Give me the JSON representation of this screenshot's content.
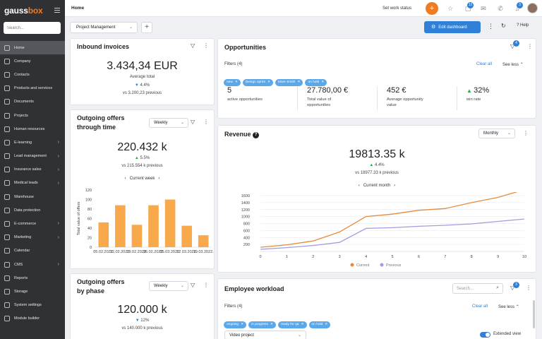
{
  "sidebar": {
    "logo_main": "gauss",
    "logo_accent": "box",
    "search_placeholder": "Search...",
    "items": [
      {
        "label": "Home",
        "active": true,
        "chevron": false
      },
      {
        "label": "Company",
        "chevron": false
      },
      {
        "label": "Contacts",
        "chevron": false
      },
      {
        "label": "Products and services",
        "chevron": false
      },
      {
        "label": "Documents",
        "chevron": false
      },
      {
        "label": "Projects",
        "chevron": false
      },
      {
        "label": "Human resources",
        "chevron": false
      },
      {
        "label": "E-learning",
        "chevron": true
      },
      {
        "label": "Lead management",
        "chevron": true
      },
      {
        "label": "Insurance sales",
        "chevron": true
      },
      {
        "label": "Medical leads",
        "chevron": true
      },
      {
        "label": "Warehouse",
        "chevron": false
      },
      {
        "label": "Data protection",
        "chevron": false
      },
      {
        "label": "E-commerce",
        "chevron": true
      },
      {
        "label": "Marketing",
        "chevron": true
      },
      {
        "label": "Calendar",
        "chevron": false
      },
      {
        "label": "CMS",
        "chevron": true
      },
      {
        "label": "Reports",
        "chevron": false
      },
      {
        "label": "Storage",
        "chevron": false
      },
      {
        "label": "System settings",
        "chevron": false
      },
      {
        "label": "Module builder",
        "chevron": false
      }
    ]
  },
  "topbar": {
    "title": "Home",
    "set_status": "Set work status",
    "plus": "+",
    "messages_badge": "12",
    "notifications_badge": "3"
  },
  "toolbar": {
    "dashboard_select": "Project Management",
    "add_tab": "+",
    "edit_dashboard": "Edit dashboard",
    "help": "Help"
  },
  "inbound": {
    "title": "Inbound invoices",
    "value": "3.434,34 EUR",
    "label": "Average total",
    "pct": "4.4%",
    "previous": "vs 3.200,23 previous"
  },
  "outgoing_time": {
    "title_line1": "Outgoing offers",
    "title_line2": "through time",
    "period": "Weekly",
    "value": "220.432 k",
    "pct": "5.5%",
    "previous": "vs 215.554 k previous",
    "nav_label": "Current week"
  },
  "outgoing_phase": {
    "title_line1": "Outgoing offers",
    "title_line2": "by phase",
    "period": "Weekly",
    "value": "120.000 k",
    "pct": "12%",
    "previous": "vs 140.000 k previous"
  },
  "opportunities": {
    "title": "Opportunities",
    "badge": "4",
    "filters_label": "Filters (4)",
    "clear_all": "Clear all",
    "see_less": "See less",
    "chips": [
      "new",
      "Design sprint",
      "More Smith",
      "on hold"
    ],
    "stats": [
      {
        "value": "5",
        "label1": "active opportunities",
        "label2": ""
      },
      {
        "value": "27.780,00 €",
        "label1": "Total value of",
        "label2": "opportunities"
      },
      {
        "value": "452 €",
        "label1": "Average opportunity",
        "label2": "value"
      },
      {
        "value": "32%",
        "label1": "win rate",
        "label2": ""
      }
    ]
  },
  "revenue": {
    "title": "Revenue",
    "period": "Monthly",
    "value": "19813.35 k",
    "pct": "4.4%",
    "previous": "vs 18977.33 k previous",
    "nav_label": "Current month"
  },
  "workload": {
    "title": "Employee workload",
    "search_placeholder": "Search...",
    "badge": "3",
    "filters_label": "Filters (4)",
    "clear_all": "Clear all",
    "see_less": "See less",
    "chips": [
      "ongoing",
      "in progress",
      "ready for qa",
      "on hold"
    ],
    "project_select": "Video project",
    "extended_view": "Extended view"
  },
  "chart_data": [
    {
      "type": "bar",
      "title": "",
      "xlabel": "",
      "ylabel": "Total value of offers",
      "categories": [
        "05.02.2022",
        "12.02.2022",
        "19.02.2022",
        "26.02.2022",
        "05.03.2022",
        "12.03.2022",
        "19.03.2022"
      ],
      "category_labels": [
        "05.02.2022.",
        "12.02.2022.",
        "19.02.2022.",
        "26.02.2022.",
        "05.03.2022.",
        "12.03.2022.",
        "19.03.2022."
      ],
      "values": [
        52,
        88,
        47,
        88,
        100,
        45,
        25
      ],
      "ylim": [
        0,
        120
      ],
      "yticks": [
        0,
        20,
        40,
        60,
        80,
        100,
        120
      ],
      "color": "#f8a94c",
      "grid": false
    },
    {
      "type": "line",
      "title": "",
      "xlabel": "",
      "ylabel": "",
      "x": [
        0,
        1,
        2,
        3,
        4,
        5,
        6,
        7,
        8,
        9,
        10
      ],
      "xlim": [
        0,
        10
      ],
      "ylim": [
        0,
        1600
      ],
      "yticks": [
        200,
        400,
        600,
        800,
        1000,
        1200,
        1400,
        1600
      ],
      "grid": true,
      "legend": "bottom",
      "series": [
        {
          "name": "Current",
          "color": "#e8893a",
          "values": [
            120,
            190,
            300,
            560,
            1000,
            1070,
            1180,
            1230,
            1400,
            1550,
            1770
          ]
        },
        {
          "name": "Previous",
          "color": "#a39be0",
          "values": [
            60,
            110,
            170,
            260,
            660,
            680,
            720,
            750,
            790,
            860,
            930
          ]
        }
      ]
    }
  ]
}
